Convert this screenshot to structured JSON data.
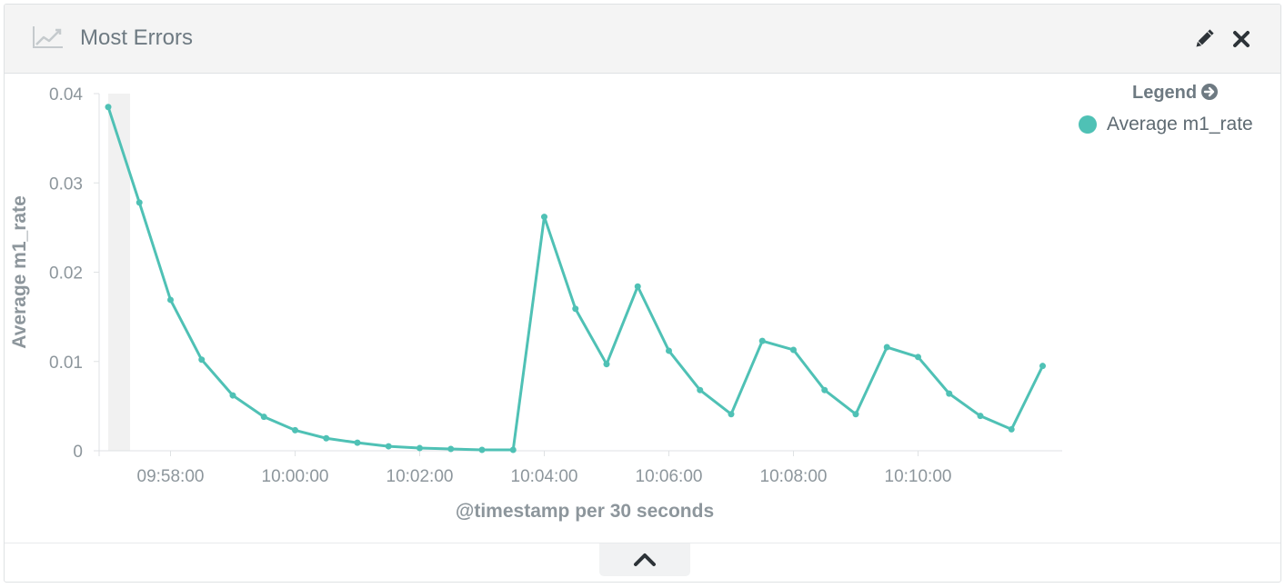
{
  "panel": {
    "title": "Most Errors",
    "title_icon": "line-chart-icon",
    "actions": [
      {
        "name": "edit-button",
        "icon": "pencil-icon"
      },
      {
        "name": "close-button",
        "icon": "close-icon"
      }
    ],
    "footer_toggle_icon": "chevron-up-icon"
  },
  "legend": {
    "title": "Legend",
    "title_icon": "circle-arrow-right-icon",
    "items": [
      {
        "label": "Average m1_rate",
        "color": "#4fc1b5"
      }
    ]
  },
  "chart_data": {
    "type": "line",
    "xlabel": "@timestamp per 30 seconds",
    "ylabel": "Average m1_rate",
    "ylim": [
      0,
      0.04
    ],
    "y_ticks": [
      "0",
      "0.01",
      "0.02",
      "0.03",
      "0.04"
    ],
    "x_ticks": [
      "09:58:00",
      "10:00:00",
      "10:02:00",
      "10:04:00",
      "10:06:00",
      "10:08:00",
      "10:10:00"
    ],
    "x_start": "09:57:00",
    "x_interval_seconds": 30,
    "grid": false,
    "legend_position": "top-right",
    "series": [
      {
        "name": "Average m1_rate",
        "color": "#4fc1b5",
        "x": [
          "09:57:00",
          "09:57:30",
          "09:58:00",
          "09:58:30",
          "09:59:00",
          "09:59:30",
          "10:00:00",
          "10:00:30",
          "10:01:00",
          "10:01:30",
          "10:02:00",
          "10:02:30",
          "10:03:00",
          "10:03:30",
          "10:04:00",
          "10:04:30",
          "10:05:00",
          "10:05:30",
          "10:06:00",
          "10:06:30",
          "10:07:00",
          "10:07:30",
          "10:08:00",
          "10:08:30",
          "10:09:00",
          "10:09:30",
          "10:10:00",
          "10:10:30",
          "10:11:00",
          "10:11:30",
          "10:12:00"
        ],
        "values": [
          0.0385,
          0.0278,
          0.0169,
          0.0102,
          0.0062,
          0.0038,
          0.0023,
          0.0014,
          0.0009,
          0.0005,
          0.0003,
          0.0002,
          0.0001,
          0.0001,
          0.0262,
          0.0159,
          0.0097,
          0.0184,
          0.0112,
          0.0068,
          0.0041,
          0.0123,
          0.0113,
          0.0068,
          0.0041,
          0.0116,
          0.0105,
          0.0064,
          0.0039,
          0.0024,
          0.0095
        ]
      }
    ]
  }
}
